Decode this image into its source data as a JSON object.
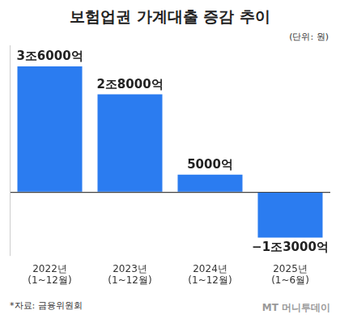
{
  "chart_data": {
    "type": "bar",
    "title": "보험업권 가계대출 증감 추이",
    "subtitle": "(단위: 원)",
    "source": "*자료: 금융위원회",
    "watermark": "MT 머니투데이",
    "categories": [
      [
        "2022년",
        "(1~12월)"
      ],
      [
        "2023년",
        "(1~12월)"
      ],
      [
        "2024년",
        "(1~12월)"
      ],
      [
        "2025년",
        "(1~6월)"
      ]
    ],
    "values": [
      3600000000000,
      2800000000000,
      500000000000,
      -1300000000000
    ],
    "value_labels": [
      "3조6000억",
      "2조8000억",
      "5000억",
      "−1조3000억"
    ],
    "data_labels": true,
    "color": "#2b7cf0",
    "ylim": [
      -1800000000000,
      4200000000000
    ],
    "yticks": [
      0
    ],
    "tick_labels": "x"
  }
}
